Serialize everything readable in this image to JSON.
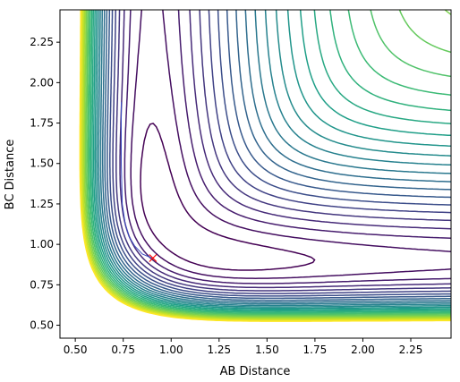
{
  "chart_data": {
    "type": "contour",
    "title": "",
    "xlabel": "AB Distance",
    "ylabel": "BC Distance",
    "xlim": [
      0.42,
      2.46
    ],
    "ylim": [
      0.42,
      2.45
    ],
    "xticks": [
      "0.50",
      "0.75",
      "1.00",
      "1.25",
      "1.50",
      "1.75",
      "2.00",
      "2.25"
    ],
    "yticks": [
      "0.50",
      "0.75",
      "1.00",
      "1.25",
      "1.50",
      "1.75",
      "2.00",
      "2.25"
    ],
    "colormap": "viridis",
    "contour_levels": 26,
    "grid": false,
    "trajectory": {
      "color": "#3b4cc0",
      "x": [
        0.74,
        0.74,
        0.745,
        0.76,
        0.78,
        0.81,
        0.85,
        0.9
      ],
      "y": [
        1.88,
        1.5,
        1.25,
        1.13,
        1.05,
        0.99,
        0.94,
        0.915
      ]
    },
    "marker": {
      "symbol": "x",
      "color": "#ff0000",
      "x": 0.905,
      "y": 0.915
    }
  }
}
